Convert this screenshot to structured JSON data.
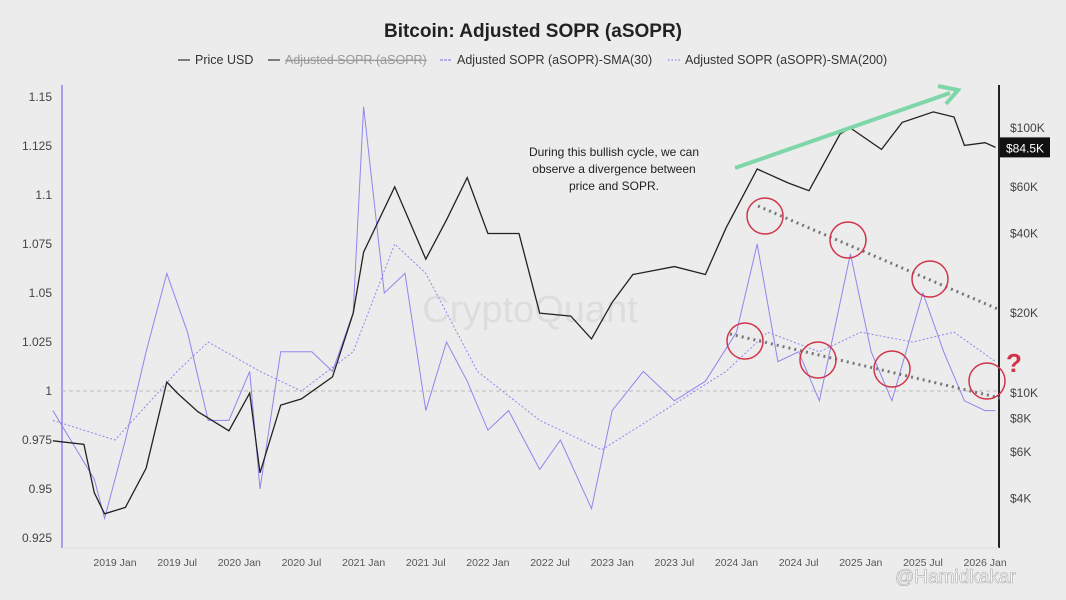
{
  "chart_data": {
    "type": "line",
    "title": "Bitcoin: Adjusted SOPR (aSOPR)",
    "legend": {
      "placement": "top",
      "items": [
        "Price USD",
        "Adjusted SOPR (aSOPR)",
        "Adjusted SOPR (aSOPR)-SMA(30)",
        "Adjusted SOPR (aSOPR)-SMA(200)"
      ],
      "hidden": [
        "Adjusted SOPR (aSOPR)"
      ]
    },
    "left_axis": {
      "ylim": [
        0.925,
        1.15
      ],
      "ticks": [
        "1.15",
        "1.125",
        "1.1",
        "1.075",
        "1.05",
        "1.025",
        "1",
        "0.975",
        "0.95",
        "0.925"
      ]
    },
    "right_axis": {
      "scale": "log",
      "ticks": [
        "$100K",
        "$60K",
        "$40K",
        "$20K",
        "$10K",
        "$8K",
        "$6K",
        "$4K"
      ],
      "tick_values": [
        100000,
        60000,
        40000,
        20000,
        10000,
        8000,
        6000,
        4000
      ],
      "current_label": "$84.5K",
      "current_value": 84500
    },
    "x_ticks": [
      "2019 Jan",
      "2019 Jul",
      "2020 Jan",
      "2020 Jul",
      "2021 Jan",
      "2021 Jul",
      "2022 Jan",
      "2022 Jul",
      "2023 Jan",
      "2023 Jul",
      "2024 Jan",
      "2024 Jul",
      "2025 Jan",
      "2025 Jul",
      "2026 Jan"
    ],
    "reference_line": 1,
    "colors": {
      "price": "#222222",
      "sma30": "#8f86ee",
      "sma200": "#8f86ee",
      "accent": "#7fd6a8",
      "circle": "#d0344a",
      "trend": "#777777"
    },
    "series": [
      {
        "name": "Price USD",
        "axis": "right",
        "points": [
          [
            "2018-07",
            6600
          ],
          [
            "2018-10",
            6400
          ],
          [
            "2018-11",
            4200
          ],
          [
            "2018-12",
            3500
          ],
          [
            "2019-02",
            3700
          ],
          [
            "2019-04",
            5200
          ],
          [
            "2019-06",
            11000
          ],
          [
            "2019-07",
            10000
          ],
          [
            "2019-09",
            8500
          ],
          [
            "2019-12",
            7200
          ],
          [
            "2020-02",
            10000
          ],
          [
            "2020-03",
            5000
          ],
          [
            "2020-05",
            9000
          ],
          [
            "2020-07",
            9500
          ],
          [
            "2020-10",
            11500
          ],
          [
            "2020-12",
            20000
          ],
          [
            "2021-01",
            34000
          ],
          [
            "2021-04",
            60000
          ],
          [
            "2021-07",
            32000
          ],
          [
            "2021-09",
            45000
          ],
          [
            "2021-11",
            65000
          ],
          [
            "2022-01",
            40000
          ],
          [
            "2022-04",
            40000
          ],
          [
            "2022-06",
            20000
          ],
          [
            "2022-09",
            19500
          ],
          [
            "2022-11",
            16000
          ],
          [
            "2023-01",
            22000
          ],
          [
            "2023-03",
            28000
          ],
          [
            "2023-07",
            30000
          ],
          [
            "2023-10",
            28000
          ],
          [
            "2023-12",
            42000
          ],
          [
            "2024-03",
            70000
          ],
          [
            "2024-06",
            62000
          ],
          [
            "2024-08",
            58000
          ],
          [
            "2024-11",
            95000
          ],
          [
            "2024-12",
            100000
          ],
          [
            "2025-03",
            83000
          ],
          [
            "2025-05",
            105000
          ],
          [
            "2025-08",
            115000
          ],
          [
            "2025-10",
            110000
          ],
          [
            "2025-11",
            86000
          ],
          [
            "2026-01",
            88000
          ],
          [
            "2026-02",
            84500
          ]
        ]
      },
      {
        "name": "Adjusted SOPR (aSOPR)-SMA(30)",
        "axis": "left",
        "points": [
          [
            "2018-07",
            0.99
          ],
          [
            "2018-11",
            0.955
          ],
          [
            "2018-12",
            0.935
          ],
          [
            "2019-02",
            0.975
          ],
          [
            "2019-04",
            1.02
          ],
          [
            "2019-06",
            1.06
          ],
          [
            "2019-08",
            1.03
          ],
          [
            "2019-10",
            0.985
          ],
          [
            "2019-12",
            0.985
          ],
          [
            "2020-02",
            1.01
          ],
          [
            "2020-03",
            0.95
          ],
          [
            "2020-05",
            1.02
          ],
          [
            "2020-08",
            1.02
          ],
          [
            "2020-10",
            1.01
          ],
          [
            "2020-12",
            1.04
          ],
          [
            "2021-01",
            1.145
          ],
          [
            "2021-03",
            1.05
          ],
          [
            "2021-05",
            1.06
          ],
          [
            "2021-07",
            0.99
          ],
          [
            "2021-09",
            1.025
          ],
          [
            "2021-11",
            1.005
          ],
          [
            "2022-01",
            0.98
          ],
          [
            "2022-03",
            0.99
          ],
          [
            "2022-06",
            0.96
          ],
          [
            "2022-08",
            0.975
          ],
          [
            "2022-11",
            0.94
          ],
          [
            "2023-01",
            0.99
          ],
          [
            "2023-04",
            1.01
          ],
          [
            "2023-07",
            0.995
          ],
          [
            "2023-10",
            1.005
          ],
          [
            "2024-01",
            1.03
          ],
          [
            "2024-03",
            1.075
          ],
          [
            "2024-05",
            1.015
          ],
          [
            "2024-07",
            1.02
          ],
          [
            "2024-09",
            0.995
          ],
          [
            "2024-12",
            1.07
          ],
          [
            "2025-02",
            1.02
          ],
          [
            "2025-04",
            0.995
          ],
          [
            "2025-07",
            1.05
          ],
          [
            "2025-09",
            1.02
          ],
          [
            "2025-11",
            0.995
          ],
          [
            "2026-01",
            0.99
          ],
          [
            "2026-02",
            0.99
          ]
        ]
      },
      {
        "name": "Adjusted SOPR (aSOPR)-SMA(200)",
        "axis": "left",
        "points": [
          [
            "2018-07",
            0.985
          ],
          [
            "2019-01",
            0.975
          ],
          [
            "2019-07",
            1.01
          ],
          [
            "2019-10",
            1.025
          ],
          [
            "2020-03",
            1.01
          ],
          [
            "2020-07",
            1.0
          ],
          [
            "2020-12",
            1.02
          ],
          [
            "2021-04",
            1.075
          ],
          [
            "2021-07",
            1.06
          ],
          [
            "2021-12",
            1.01
          ],
          [
            "2022-06",
            0.985
          ],
          [
            "2022-12",
            0.97
          ],
          [
            "2023-06",
            0.99
          ],
          [
            "2023-12",
            1.01
          ],
          [
            "2024-04",
            1.03
          ],
          [
            "2024-09",
            1.02
          ],
          [
            "2025-01",
            1.03
          ],
          [
            "2025-06",
            1.025
          ],
          [
            "2025-10",
            1.03
          ],
          [
            "2026-02",
            1.015
          ]
        ]
      }
    ],
    "annotations": {
      "text": [
        "During this bullish cycle, we can",
        "observe a divergence between",
        "price and SOPR."
      ],
      "question": "?"
    }
  },
  "watermark": "CryptoQuant",
  "credit": "@Hamidkakar"
}
